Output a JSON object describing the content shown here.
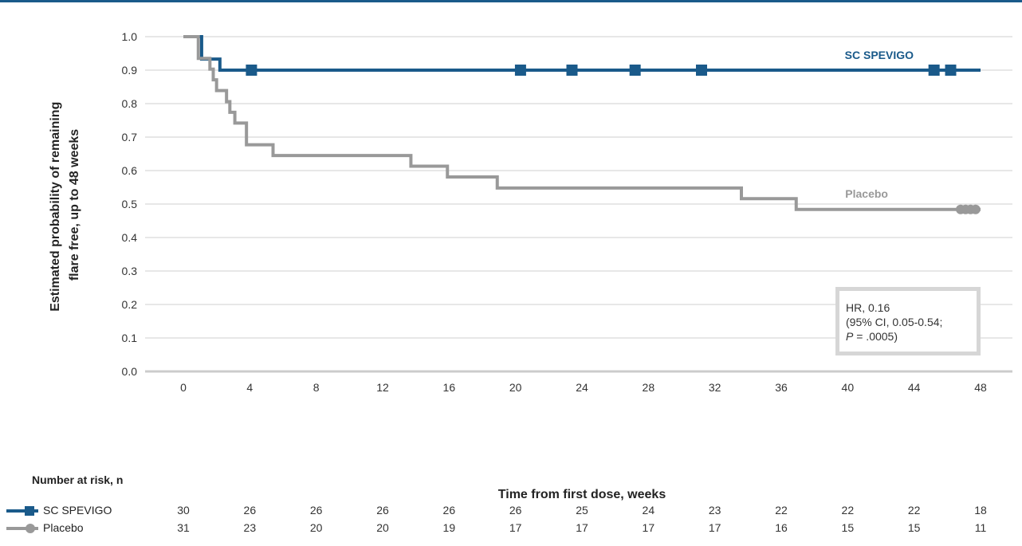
{
  "chart_data": {
    "type": "line",
    "subtype": "kaplan-meier",
    "xlabel": "Time from first dose, weeks",
    "ylabel_lines": [
      "Estimated probability of remaining",
      "flare free, up to 48 weeks"
    ],
    "x_ticks": [
      0,
      4,
      8,
      12,
      16,
      20,
      24,
      28,
      32,
      36,
      40,
      44,
      48
    ],
    "y_ticks": [
      "1.0",
      "0.9",
      "0.8",
      "0.7",
      "0.6",
      "0.5",
      "0.4",
      "0.3",
      "0.2",
      "0.1",
      "0.0"
    ],
    "xlim": [
      0,
      48
    ],
    "ylim": [
      0,
      1
    ],
    "grid": "horizontal",
    "series": [
      {
        "name": "SC SPEVIGO",
        "color": "#1a5a8a",
        "marker": "square",
        "steps": [
          [
            0,
            1.0
          ],
          [
            1.1,
            0.933
          ],
          [
            2.2,
            0.9
          ],
          [
            48,
            0.9
          ]
        ],
        "censored": [
          4.1,
          20.3,
          23.4,
          27.2,
          31.2,
          45.2,
          46.2
        ]
      },
      {
        "name": "Placebo",
        "color": "#999999",
        "marker": "circle",
        "steps": [
          [
            0,
            1.0
          ],
          [
            0.9,
            0.935
          ],
          [
            1.6,
            0.903
          ],
          [
            1.8,
            0.871
          ],
          [
            2.0,
            0.839
          ],
          [
            2.6,
            0.806
          ],
          [
            2.8,
            0.774
          ],
          [
            3.1,
            0.742
          ],
          [
            3.8,
            0.677
          ],
          [
            5.4,
            0.645
          ],
          [
            13.7,
            0.613
          ],
          [
            15.9,
            0.581
          ],
          [
            18.9,
            0.548
          ],
          [
            33.6,
            0.516
          ],
          [
            36.9,
            0.484
          ],
          [
            48,
            0.484
          ]
        ],
        "censored": [
          46.8,
          47.1,
          47.4,
          47.7
        ]
      }
    ],
    "annotation": {
      "line1": "HR, 0.16",
      "line2": "(95% CI, 0.05-0.54;",
      "line3_italic": "P",
      "line3_rest": " = .0005)"
    }
  },
  "risk_table": {
    "title": "Number at risk, n",
    "rows": [
      {
        "name": "SC SPEVIGO",
        "values": [
          "30",
          "26",
          "26",
          "26",
          "26",
          "26",
          "25",
          "24",
          "23",
          "22",
          "22",
          "22",
          "18"
        ]
      },
      {
        "name": "Placebo",
        "values": [
          "31",
          "23",
          "20",
          "20",
          "19",
          "17",
          "17",
          "17",
          "17",
          "16",
          "15",
          "15",
          "11"
        ]
      }
    ]
  }
}
